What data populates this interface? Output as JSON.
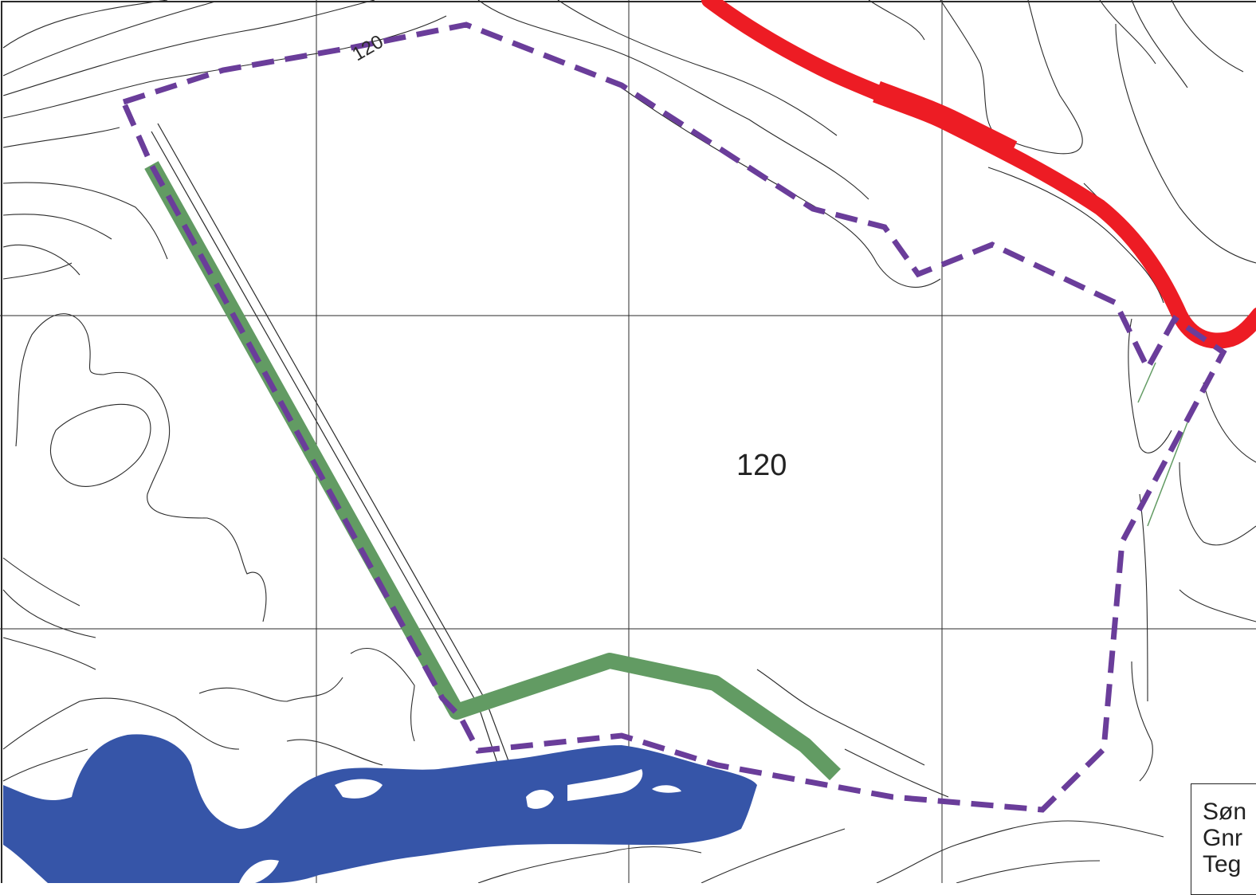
{
  "map": {
    "center_label": "120",
    "contour_label": "120",
    "legend_lines": [
      "Søn",
      "Gnr",
      "Teg"
    ]
  },
  "colors": {
    "background": "#ffffff",
    "contour": "#2a2a2a",
    "grid": "#2a2a2a",
    "boundary": "#6a3d9a",
    "road": "#ed1c24",
    "path": "#629b63",
    "water": "#3655a8"
  },
  "features": {
    "boundary": "dashed-purple-boundary",
    "road": "red-road",
    "path": "green-trail",
    "water": "blue-river"
  }
}
